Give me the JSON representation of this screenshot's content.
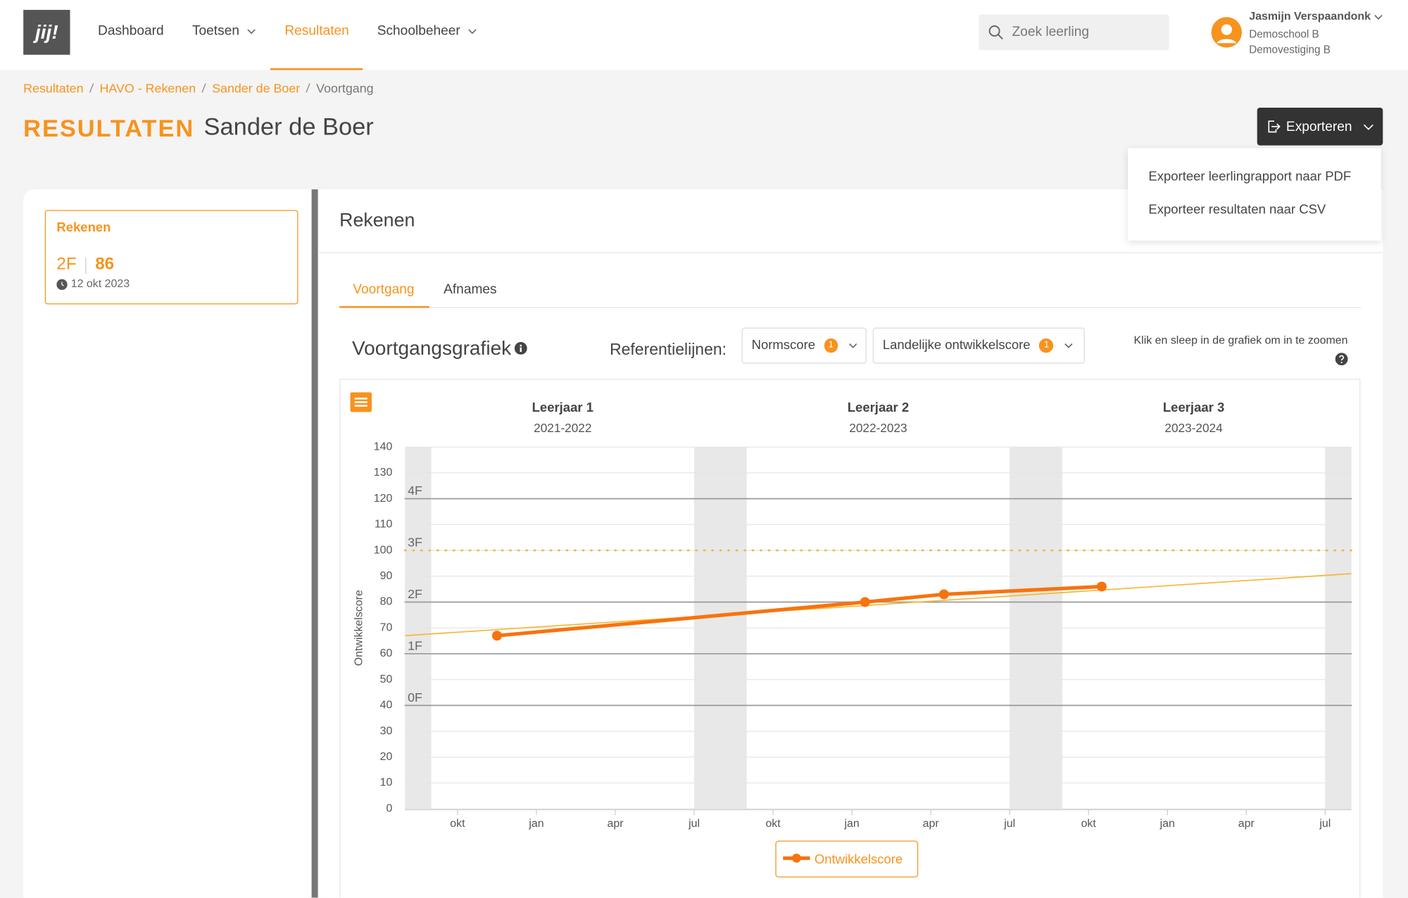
{
  "nav": {
    "logo": "jij!",
    "items": [
      "Dashboard",
      "Toetsen",
      "Resultaten",
      "Schoolbeheer"
    ],
    "search_placeholder": "Zoek leerling",
    "user": {
      "name": "Jasmijn Verspaandonk",
      "school": "Demoschool B",
      "branch": "Demovestiging B"
    }
  },
  "breadcrumb": [
    "Resultaten",
    "HAVO - Rekenen",
    "Sander de Boer",
    "Voortgang"
  ],
  "page_title": "RESULTATEN",
  "student": "Sander de Boer",
  "export": {
    "button": "Exporteren",
    "menu": [
      "Exporteer leerlingrapport naar PDF",
      "Exporteer resultaten naar CSV"
    ]
  },
  "subject_card": {
    "title": "Rekenen",
    "level": "2F",
    "score": 86,
    "date": "12 okt 2023"
  },
  "panel_title": "Rekenen",
  "tabs": [
    "Voortgang",
    "Afnames"
  ],
  "chart_heading": "Voortgangsgrafiek",
  "reference_label": "Referentielijnen:",
  "filters": [
    {
      "label": "Normscore",
      "count": 1
    },
    {
      "label": "Landelijke ontwikkelscore",
      "count": 1
    }
  ],
  "zoom_hint": "Klik en sleep in de grafiek om in te zoomen",
  "chart_data": {
    "type": "line",
    "y_label": "Ontwikkelscore",
    "period_headers": [
      {
        "title": "Leerjaar 1",
        "years": "2021-2022"
      },
      {
        "title": "Leerjaar 2",
        "years": "2022-2023"
      },
      {
        "title": "Leerjaar 3",
        "years": "2023-2024"
      }
    ],
    "series": [
      {
        "name": "Ontwikkelscore",
        "color": "#f7730e",
        "x": [
          "2021-11",
          "2023-01",
          "2023-04",
          "2023-10"
        ],
        "values": [
          67,
          80,
          83,
          86
        ]
      }
    ],
    "trend": {
      "color": "#f5b731",
      "x": [
        "2021-08",
        "2024-08"
      ],
      "values": [
        67,
        91
      ]
    },
    "reference_lines": [
      {
        "label": "4F",
        "value": 120,
        "color": "#9a9a9a"
      },
      {
        "label": "3F",
        "value": 100,
        "color": "#f5b731",
        "dotted": true
      },
      {
        "label": "2F",
        "value": 80,
        "color": "#9a9a9a"
      },
      {
        "label": "1F",
        "value": 60,
        "color": "#9a9a9a"
      },
      {
        "label": "0F",
        "value": 40,
        "color": "#9a9a9a"
      }
    ],
    "shaded_periods": [
      {
        "start": "2021-08",
        "end": "2021-09"
      },
      {
        "start": "2022-07",
        "end": "2022-09"
      },
      {
        "start": "2023-07",
        "end": "2023-09"
      },
      {
        "start": "2024-07",
        "end": "2024-08"
      }
    ],
    "xlim": [
      "2021-08",
      "2024-08"
    ],
    "xticks": [
      {
        "value": "2021-10",
        "label": "okt"
      },
      {
        "value": "2022-01",
        "label": "jan"
      },
      {
        "value": "2022-04",
        "label": "apr"
      },
      {
        "value": "2022-07",
        "label": "jul"
      },
      {
        "value": "2022-10",
        "label": "okt"
      },
      {
        "value": "2023-01",
        "label": "jan"
      },
      {
        "value": "2023-04",
        "label": "apr"
      },
      {
        "value": "2023-07",
        "label": "jul"
      },
      {
        "value": "2023-10",
        "label": "okt"
      },
      {
        "value": "2024-01",
        "label": "jan"
      },
      {
        "value": "2024-04",
        "label": "apr"
      },
      {
        "value": "2024-07",
        "label": "jul"
      }
    ],
    "ylim": [
      0,
      140
    ],
    "yticks": [
      0,
      10,
      20,
      30,
      40,
      50,
      60,
      70,
      80,
      90,
      100,
      110,
      120,
      130,
      140
    ],
    "grid": true
  }
}
